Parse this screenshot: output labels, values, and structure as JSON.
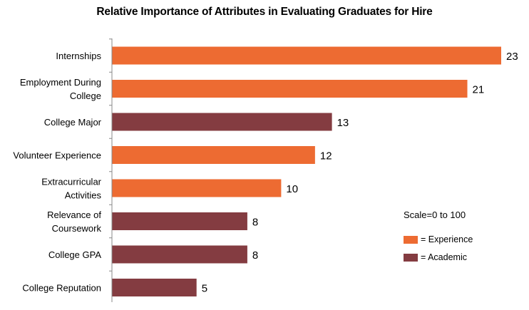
{
  "chart_data": {
    "type": "bar",
    "orientation": "horizontal",
    "title": "Relative Importance of Attributes in Evaluating Graduates for Hire",
    "note": "Scale=0 to 100",
    "xlim": [
      0,
      23
    ],
    "categories": [
      {
        "lines": [
          "Internships"
        ],
        "value": 23,
        "group": "experience"
      },
      {
        "lines": [
          "Employment During",
          "College"
        ],
        "value": 21,
        "group": "experience"
      },
      {
        "lines": [
          "College Major"
        ],
        "value": 13,
        "group": "academic"
      },
      {
        "lines": [
          "Volunteer Experience"
        ],
        "value": 12,
        "group": "experience"
      },
      {
        "lines": [
          "Extracurricular",
          "Activities"
        ],
        "value": 10,
        "group": "experience"
      },
      {
        "lines": [
          "Relevance of",
          "Coursework"
        ],
        "value": 8,
        "group": "academic"
      },
      {
        "lines": [
          "College GPA"
        ],
        "value": 8,
        "group": "academic"
      },
      {
        "lines": [
          "College Reputation"
        ],
        "value": 5,
        "group": "academic"
      }
    ],
    "legend": [
      {
        "key": "experience",
        "label": "= Experience",
        "color": "#ED6B32"
      },
      {
        "key": "academic",
        "label": "= Academic",
        "color": "#843C41"
      }
    ]
  }
}
